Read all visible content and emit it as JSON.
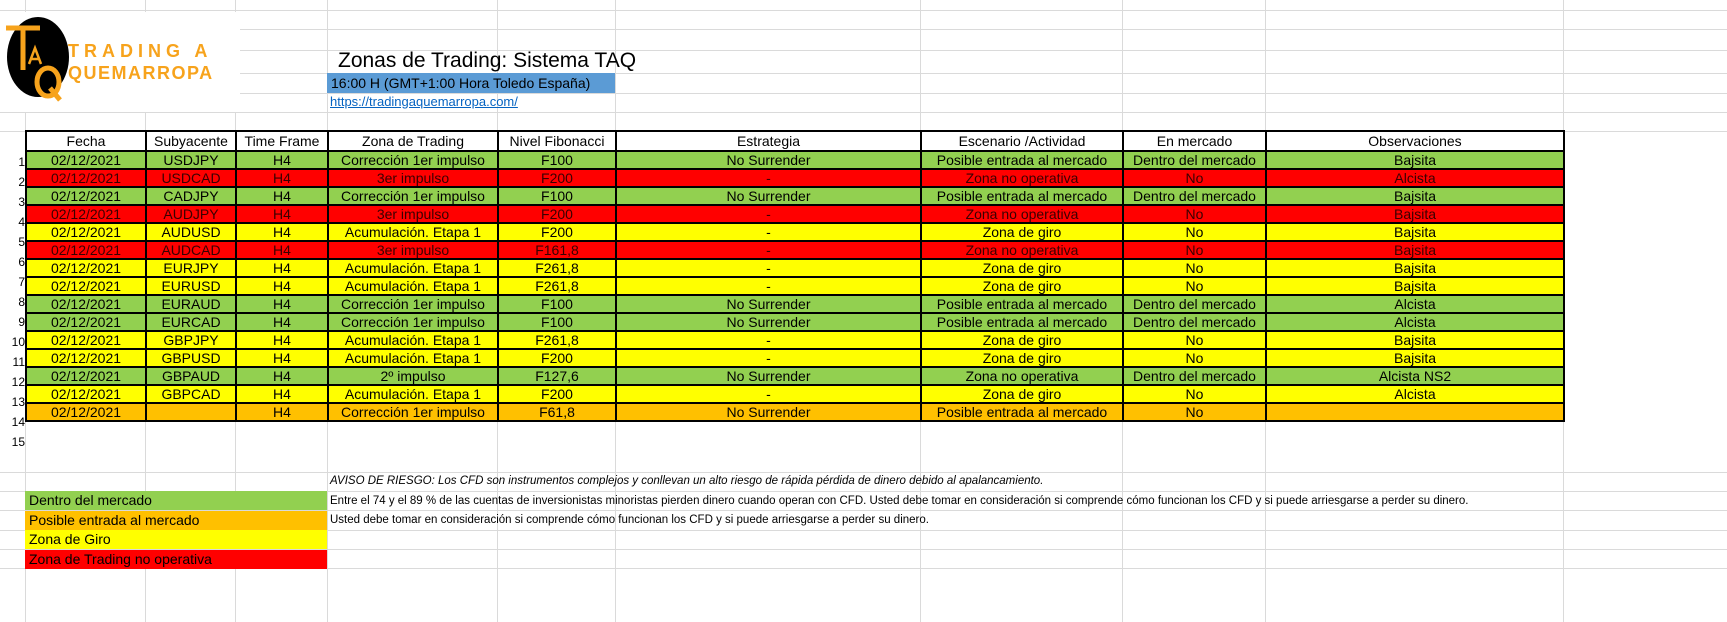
{
  "logo": {
    "letters": "TaQ",
    "text_line1": "TRADING A",
    "text_line2": "QUEMARROPA",
    "colors": {
      "orange": "#f7a31c",
      "black": "#000000"
    }
  },
  "title": "Zonas de Trading: Sistema TAQ",
  "subtitle": "16:00 H (GMT+1:00 Hora Toledo España)",
  "link": "https://tradingaquemarropa.com/",
  "colors": {
    "green": "#92d050",
    "red": "#ff0000",
    "yellow": "#ffff00",
    "orange": "#ffc000",
    "header_blue": "#5b9bd5"
  },
  "table": {
    "headers": [
      "Fecha",
      "Subyacente",
      "Time Frame",
      "Zona de Trading",
      "Nivel Fibonacci",
      "Estrategia",
      "Escenario /Actividad",
      "En mercado",
      "Observaciones"
    ],
    "rows": [
      {
        "n": "1",
        "color": "green",
        "cells": [
          "02/12/2021",
          "USDJPY",
          "H4",
          "Corrección 1er impulso",
          "F100",
          "No Surrender",
          "Posible entrada al mercado",
          "Dentro del mercado",
          "Bajsita"
        ]
      },
      {
        "n": "2",
        "color": "red",
        "cells": [
          "02/12/2021",
          "USDCAD",
          "H4",
          "3er impulso",
          "F200",
          "-",
          "Zona no operativa",
          "No",
          "Alcista"
        ]
      },
      {
        "n": "3",
        "color": "green",
        "cells": [
          "02/12/2021",
          "CADJPY",
          "H4",
          "Corrección 1er impulso",
          "F100",
          "No Surrender",
          "Posible entrada al mercado",
          "Dentro del mercado",
          "Bajsita"
        ]
      },
      {
        "n": "4",
        "color": "red",
        "cells": [
          "02/12/2021",
          "AUDJPY",
          "H4",
          "3er impulso",
          "F200",
          "-",
          "Zona no operativa",
          "No",
          "Bajsita"
        ]
      },
      {
        "n": "5",
        "color": "yellow",
        "cells": [
          "02/12/2021",
          "AUDUSD",
          "H4",
          "Acumulación. Etapa 1",
          "F200",
          "-",
          "Zona de giro",
          "No",
          "Bajsita"
        ]
      },
      {
        "n": "6",
        "color": "red",
        "cells": [
          "02/12/2021",
          "AUDCAD",
          "H4",
          "3er impulso",
          "F161,8",
          "-",
          "Zona no operativa",
          "No",
          "Bajsita"
        ]
      },
      {
        "n": "7",
        "color": "yellow",
        "cells": [
          "02/12/2021",
          "EURJPY",
          "H4",
          "Acumulación. Etapa 1",
          "F261,8",
          "-",
          "Zona de giro",
          "No",
          "Bajsita"
        ]
      },
      {
        "n": "8",
        "color": "yellow",
        "cells": [
          "02/12/2021",
          "EURUSD",
          "H4",
          "Acumulación. Etapa 1",
          "F261,8",
          "-",
          "Zona de giro",
          "No",
          "Bajsita"
        ]
      },
      {
        "n": "9",
        "color": "green",
        "cells": [
          "02/12/2021",
          "EURAUD",
          "H4",
          "Corrección 1er impulso",
          "F100",
          "No Surrender",
          "Posible entrada al mercado",
          "Dentro del mercado",
          "Alcista"
        ]
      },
      {
        "n": "10",
        "color": "green",
        "cells": [
          "02/12/2021",
          "EURCAD",
          "H4",
          "Corrección 1er impulso",
          "F100",
          "No Surrender",
          "Posible entrada al mercado",
          "Dentro del mercado",
          "Alcista"
        ]
      },
      {
        "n": "11",
        "color": "yellow",
        "cells": [
          "02/12/2021",
          "GBPJPY",
          "H4",
          "Acumulación. Etapa 1",
          "F261,8",
          "-",
          "Zona de giro",
          "No",
          "Bajsita"
        ]
      },
      {
        "n": "12",
        "color": "yellow",
        "cells": [
          "02/12/2021",
          "GBPUSD",
          "H4",
          "Acumulación. Etapa 1",
          "F200",
          "-",
          "Zona de giro",
          "No",
          "Bajsita"
        ]
      },
      {
        "n": "13",
        "color": "green",
        "cells": [
          "02/12/2021",
          "GBPAUD",
          "H4",
          "2º impulso",
          "F127,6",
          "No Surrender",
          "Zona no operativa",
          "Dentro del mercado",
          "Alcista NS2"
        ]
      },
      {
        "n": "14",
        "color": "yellow",
        "cells": [
          "02/12/2021",
          "GBPCAD",
          "H4",
          "Acumulación. Etapa 1",
          "F200",
          "-",
          "Zona de giro",
          "No",
          "Alcista"
        ]
      },
      {
        "n": "15",
        "color": "orange",
        "cells": [
          "02/12/2021",
          "",
          "H4",
          "Corrección 1er impulso",
          "F61,8",
          "No Surrender",
          "Posible entrada al mercado",
          "No",
          ""
        ]
      }
    ]
  },
  "legend": [
    {
      "label": "Dentro del mercado",
      "color": "green"
    },
    {
      "label": "Posible entrada al mercado",
      "color": "orange"
    },
    {
      "label": "Zona de Giro",
      "color": "yellow"
    },
    {
      "label": "Zona de Trading no operativa",
      "color": "red"
    }
  ],
  "warnings": [
    "AVISO DE RIESGO: Los CFD son instrumentos complejos y conllevan un alto riesgo de rápida pérdida de dinero debido al apalancamiento.",
    "Entre el 74 y el 89 % de las cuentas de inversionistas minoristas pierden dinero cuando operan con CFD. Usted debe tomar en consideración si comprende cómo funcionan los CFD y si puede arriesgarse a perder su dinero.",
    "Usted debe tomar en consideración si comprende cómo funcionan los CFD y si puede arriesgarse a perder su dinero."
  ]
}
